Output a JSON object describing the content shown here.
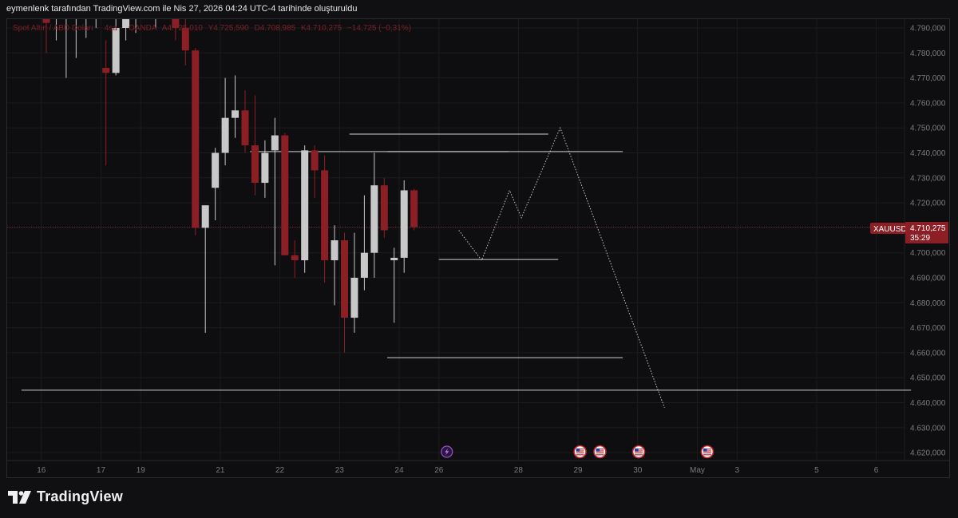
{
  "header": {
    "caption": "eymenlenk tarafından TradingView.com ile Nis 27, 2026 04:24 UTC-4 tarihinde oluşturuldu"
  },
  "legend": {
    "symbol_name": "Spot Altın / ABD Doları",
    "interval": "4sa",
    "exchange": "OANDA",
    "open": "A4.725,010",
    "high": "Y4.725,590",
    "low": "D4.708,985",
    "close": "K4.710,275",
    "change": "−14,725 (−0,31%)"
  },
  "price_badge": {
    "symbol": "XAUUSD",
    "price": "4.710,275",
    "countdown": "35:29"
  },
  "branding": {
    "name": "TradingView",
    "logo_icon": "tradingview-logo-icon"
  },
  "colors": {
    "up": "#c8c8c8",
    "down": "#8c1f25",
    "grid": "#1c1c1f",
    "background": "#0e0e10",
    "badge": "#8c1f25"
  },
  "chart_data": {
    "type": "candlestick",
    "symbol": "XAUUSD",
    "ylim": [
      4613,
      4795
    ],
    "y_ticks": [
      4620,
      4630,
      4640,
      4650,
      4660,
      4670,
      4680,
      4690,
      4700,
      4710,
      4720,
      4730,
      4740,
      4750,
      4760,
      4770,
      4780,
      4790
    ],
    "y_tick_labels": [
      "4.620,000",
      "4.630,000",
      "4.640,000",
      "4.650,000",
      "4.660,000",
      "4.670,000",
      "4.680,000",
      "4.690,000",
      "4.700,000",
      "4.710,000",
      "4.720,000",
      "4.730,000",
      "4.740,000",
      "4.750,000",
      "4.760,000",
      "4.770,000",
      "4.780,000",
      "4.790,000"
    ],
    "x_ticks": [
      {
        "label": "16",
        "bar": -0.5
      },
      {
        "label": "17",
        "bar": 5.5
      },
      {
        "label": "19",
        "bar": 9.5
      },
      {
        "label": "21",
        "bar": 17.5
      },
      {
        "label": "22",
        "bar": 23.5
      },
      {
        "label": "23",
        "bar": 29.5
      },
      {
        "label": "24",
        "bar": 35.5
      },
      {
        "label": "26",
        "bar": 39.5
      },
      {
        "label": "28",
        "bar": 47.5
      },
      {
        "label": "29",
        "bar": 53.5
      },
      {
        "label": "30",
        "bar": 59.5
      },
      {
        "label": "May",
        "bar": 65.5
      },
      {
        "label": "3",
        "bar": 69.5
      },
      {
        "label": "5",
        "bar": 77.5
      },
      {
        "label": "6",
        "bar": 83.5
      }
    ],
    "candles": [
      {
        "o": 4797,
        "h": 4800,
        "l": 4780,
        "c": 4792
      },
      {
        "o": 4797,
        "h": 4800,
        "l": 4785,
        "c": 4800
      },
      {
        "o": 4797,
        "h": 4800,
        "l": 4770,
        "c": 4800
      },
      {
        "o": 4797,
        "h": 4800,
        "l": 4778,
        "c": 4799
      },
      {
        "o": 4797,
        "h": 4800,
        "l": 4786,
        "c": 4798
      },
      {
        "o": 4797,
        "h": 4800,
        "l": 4790,
        "c": 4799
      },
      {
        "o": 4774,
        "h": 4785,
        "l": 4735,
        "c": 4772
      },
      {
        "o": 4772,
        "h": 4795,
        "l": 4771,
        "c": 4790
      },
      {
        "o": 4790,
        "h": 4800,
        "l": 4785,
        "c": 4798
      },
      {
        "o": 4797,
        "h": 4800,
        "l": 4788,
        "c": 4799
      },
      {
        "o": 4798,
        "h": 4800,
        "l": 4794,
        "c": 4797
      },
      {
        "o": 4797,
        "h": 4800,
        "l": 4790,
        "c": 4798
      },
      {
        "o": 4798,
        "h": 4800,
        "l": 4795,
        "c": 4796
      },
      {
        "o": 4797,
        "h": 4800,
        "l": 4785,
        "c": 4790
      },
      {
        "o": 4790,
        "h": 4795,
        "l": 4775,
        "c": 4781
      },
      {
        "o": 4781,
        "h": 4782,
        "l": 4707,
        "c": 4710
      },
      {
        "o": 4710,
        "h": 4719,
        "l": 4668,
        "c": 4719
      },
      {
        "o": 4726,
        "h": 4742,
        "l": 4713,
        "c": 4740
      },
      {
        "o": 4740,
        "h": 4770,
        "l": 4735,
        "c": 4754
      },
      {
        "o": 4754,
        "h": 4771,
        "l": 4746,
        "c": 4757
      },
      {
        "o": 4757,
        "h": 4765,
        "l": 4740,
        "c": 4743
      },
      {
        "o": 4743,
        "h": 4763,
        "l": 4723,
        "c": 4728
      },
      {
        "o": 4728,
        "h": 4745,
        "l": 4722,
        "c": 4740
      },
      {
        "o": 4741,
        "h": 4754,
        "l": 4695,
        "c": 4747
      },
      {
        "o": 4747,
        "h": 4748,
        "l": 4700,
        "c": 4699
      },
      {
        "o": 4699,
        "h": 4705,
        "l": 4690,
        "c": 4697
      },
      {
        "o": 4697,
        "h": 4743,
        "l": 4692,
        "c": 4741
      },
      {
        "o": 4741,
        "h": 4743,
        "l": 4722,
        "c": 4733
      },
      {
        "o": 4733,
        "h": 4739,
        "l": 4688,
        "c": 4697
      },
      {
        "o": 4697,
        "h": 4711,
        "l": 4679,
        "c": 4705
      },
      {
        "o": 4705,
        "h": 4708,
        "l": 4660,
        "c": 4674
      },
      {
        "o": 4674,
        "h": 4708,
        "l": 4668,
        "c": 4690
      },
      {
        "o": 4690,
        "h": 4723,
        "l": 4685,
        "c": 4700
      },
      {
        "o": 4700,
        "h": 4740,
        "l": 4690,
        "c": 4727
      },
      {
        "o": 4727,
        "h": 4730,
        "l": 4706,
        "c": 4709
      },
      {
        "o": 4697,
        "h": 4702,
        "l": 4672,
        "c": 4698
      },
      {
        "o": 4698,
        "h": 4729,
        "l": 4692,
        "c": 4725
      },
      {
        "o": 4725,
        "h": 4725.59,
        "l": 4708.985,
        "c": 4710.275
      }
    ],
    "horizontal_lines": [
      {
        "price": 4747.5,
        "from_bar": 30.5,
        "to_bar": 50.5
      },
      {
        "price": 4740.5,
        "from_bar": 34.3,
        "to_bar": 58
      },
      {
        "price": 4740.5,
        "from_bar": 20.5,
        "to_bar": 46.5
      },
      {
        "price": 4697.3,
        "from_bar": 39.5,
        "to_bar": 51.5
      },
      {
        "price": 4658,
        "from_bar": 34.3,
        "to_bar": 58
      },
      {
        "price": 4645,
        "from_bar": -2.5,
        "to_bar": 87
      }
    ],
    "projection_path": [
      {
        "bar": 41.5,
        "price": 4709
      },
      {
        "bar": 43.8,
        "price": 4697
      },
      {
        "bar": 46.6,
        "price": 4725
      },
      {
        "bar": 47.8,
        "price": 4714
      },
      {
        "bar": 51.7,
        "price": 4750
      },
      {
        "bar": 62.2,
        "price": 4638
      }
    ],
    "current_price": 4710.275,
    "event_markers": [
      {
        "bar": 40.3,
        "icon": "lightning-icon"
      },
      {
        "bar": 53.7,
        "icon": "us-flag-icon"
      },
      {
        "bar": 55.7,
        "icon": "us-flag-icon"
      },
      {
        "bar": 59.6,
        "icon": "us-flag-icon"
      },
      {
        "bar": 66.5,
        "icon": "us-flag-icon"
      }
    ]
  }
}
